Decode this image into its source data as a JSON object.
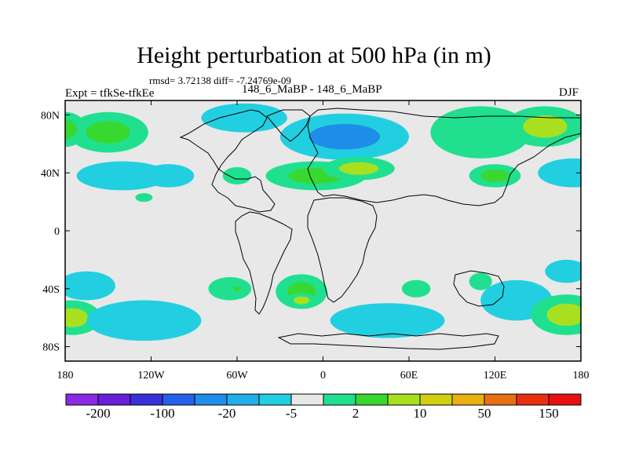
{
  "title": "Height perturbation at 500 hPa (in m)",
  "stats": "rmsd= 3.72138 diff= -7.24769e-09",
  "left_label": "Expt = tfkSe-tfkEe",
  "center_label": "148_6_MaBP - 148_6_MaBP",
  "right_label": "DJF",
  "x_ticks": [
    {
      "lon": -180,
      "label": "180"
    },
    {
      "lon": -120,
      "label": "120W"
    },
    {
      "lon": -60,
      "label": "60W"
    },
    {
      "lon": 0,
      "label": "0"
    },
    {
      "lon": 60,
      "label": "60E"
    },
    {
      "lon": 120,
      "label": "120E"
    },
    {
      "lon": 180,
      "label": "180"
    }
  ],
  "y_ticks": [
    {
      "lat": 80,
      "label": "80N"
    },
    {
      "lat": 40,
      "label": "40N"
    },
    {
      "lat": 0,
      "label": "0"
    },
    {
      "lat": -40,
      "label": "40S"
    },
    {
      "lat": -80,
      "label": "80S"
    }
  ],
  "colorbar": {
    "colors": [
      "#8a2be2",
      "#6a1fd8",
      "#3a30d8",
      "#2460e8",
      "#1e8ee8",
      "#22aee8",
      "#22cfe0",
      "#e8e8e8",
      "#20e090",
      "#38d830",
      "#a8e020",
      "#d0d010",
      "#e8b010",
      "#e87010",
      "#e83010",
      "#e81010"
    ],
    "labels": [
      {
        "after_index": 0,
        "text": "-200"
      },
      {
        "after_index": 2,
        "text": "-100"
      },
      {
        "after_index": 4,
        "text": "-20"
      },
      {
        "after_index": 6,
        "text": "-5"
      },
      {
        "after_index": 8,
        "text": "2"
      },
      {
        "after_index": 10,
        "text": "10"
      },
      {
        "after_index": 12,
        "text": "50"
      },
      {
        "after_index": 14,
        "text": "150"
      }
    ]
  },
  "anomalies": [
    {
      "lon": -150,
      "lat": 68,
      "rx": 28,
      "ry": 14,
      "level": 9
    },
    {
      "lon": -180,
      "lat": 70,
      "rx": 15,
      "ry": 12,
      "level": 9
    },
    {
      "lon": -140,
      "lat": 38,
      "rx": 32,
      "ry": 10,
      "level": 6
    },
    {
      "lon": -108,
      "lat": 38,
      "rx": 18,
      "ry": 8,
      "level": 6
    },
    {
      "lon": -125,
      "lat": 23,
      "rx": 6,
      "ry": 3,
      "level": 8
    },
    {
      "lon": -55,
      "lat": 78,
      "rx": 30,
      "ry": 10,
      "level": 6
    },
    {
      "lon": 15,
      "lat": 65,
      "rx": 45,
      "ry": 16,
      "level": 4
    },
    {
      "lon": -5,
      "lat": 38,
      "rx": 35,
      "ry": 10,
      "level": 9
    },
    {
      "lon": 25,
      "lat": 43,
      "rx": 25,
      "ry": 8,
      "level": 10
    },
    {
      "lon": -60,
      "lat": 38,
      "rx": 10,
      "ry": 6,
      "level": 8
    },
    {
      "lon": 110,
      "lat": 68,
      "rx": 35,
      "ry": 18,
      "level": 8
    },
    {
      "lon": 155,
      "lat": 72,
      "rx": 28,
      "ry": 14,
      "level": 10
    },
    {
      "lon": 120,
      "lat": 38,
      "rx": 18,
      "ry": 8,
      "level": 9
    },
    {
      "lon": 175,
      "lat": 40,
      "rx": 25,
      "ry": 10,
      "level": 6
    },
    {
      "lon": -165,
      "lat": -38,
      "rx": 20,
      "ry": 10,
      "level": 6
    },
    {
      "lon": -175,
      "lat": -60,
      "rx": 20,
      "ry": 12,
      "level": 10
    },
    {
      "lon": -125,
      "lat": -62,
      "rx": 40,
      "ry": 14,
      "level": 6
    },
    {
      "lon": -65,
      "lat": -40,
      "rx": 15,
      "ry": 8,
      "level": 8
    },
    {
      "lon": -60,
      "lat": -40,
      "rx": 5,
      "ry": 3,
      "level": 9
    },
    {
      "lon": -15,
      "lat": -42,
      "rx": 18,
      "ry": 12,
      "level": 9
    },
    {
      "lon": -15,
      "lat": -48,
      "rx": 10,
      "ry": 5,
      "level": 10
    },
    {
      "lon": 45,
      "lat": -62,
      "rx": 40,
      "ry": 12,
      "level": 6
    },
    {
      "lon": 65,
      "lat": -40,
      "rx": 10,
      "ry": 6,
      "level": 8
    },
    {
      "lon": 110,
      "lat": -35,
      "rx": 8,
      "ry": 6,
      "level": 8
    },
    {
      "lon": 135,
      "lat": -48,
      "rx": 25,
      "ry": 14,
      "level": 6
    },
    {
      "lon": 170,
      "lat": -58,
      "rx": 25,
      "ry": 14,
      "level": 10
    },
    {
      "lon": 170,
      "lat": -28,
      "rx": 15,
      "ry": 8,
      "level": 6
    }
  ]
}
